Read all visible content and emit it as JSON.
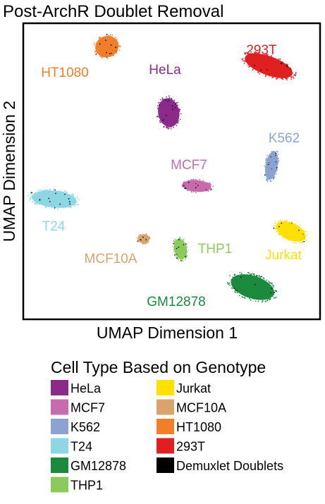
{
  "chart_data": {
    "type": "scatter",
    "title": "Post-ArchR Doublet Removal",
    "xlabel": "UMAP Dimension 1",
    "ylabel": "UMAP Dimension 2",
    "xlim": [
      0,
      100
    ],
    "ylim": [
      0,
      100
    ],
    "grid": false,
    "ticks": false,
    "legend": {
      "title": "Cell Type Based on Genotype",
      "placement": "bottom",
      "columns": 2
    },
    "series": [
      {
        "name": "HeLa",
        "color": "#8B2A8B",
        "label": "HeLa",
        "clusters": [
          {
            "x": 49,
            "y": 70,
            "rx": 4,
            "ry": 5.5,
            "angle": 10,
            "n": 200
          }
        ]
      },
      {
        "name": "MCF7",
        "color": "#C76AAE",
        "label": "MCF7",
        "clusters": [
          {
            "x": 58.5,
            "y": 45,
            "rx": 5.5,
            "ry": 2.2,
            "angle": -5,
            "n": 120
          }
        ]
      },
      {
        "name": "K562",
        "color": "#8BA3D1",
        "label": "K562",
        "clusters": [
          {
            "x": 84,
            "y": 52,
            "rx": 2.3,
            "ry": 5.5,
            "angle": -10,
            "n": 130
          }
        ]
      },
      {
        "name": "T24",
        "color": "#8DD6E3",
        "label": "T24",
        "clusters": [
          {
            "x": 10,
            "y": 40.5,
            "rx": 8.5,
            "ry": 3.2,
            "angle": -6,
            "n": 210
          }
        ]
      },
      {
        "name": "GM12878",
        "color": "#1B8A3F",
        "label": "GM12878",
        "clusters": [
          {
            "x": 77.5,
            "y": 10.5,
            "rx": 8.5,
            "ry": 4.3,
            "angle": -18,
            "n": 220
          }
        ]
      },
      {
        "name": "THP1",
        "color": "#8BCB5E",
        "label": "THP1",
        "clusters": [
          {
            "x": 53,
            "y": 23.5,
            "rx": 2.4,
            "ry": 4,
            "angle": 12,
            "n": 110
          }
        ]
      },
      {
        "name": "Jurkat",
        "color": "#FFE000",
        "label": "Jurkat",
        "clusters": [
          {
            "x": 90.5,
            "y": 29.5,
            "rx": 6,
            "ry": 3.2,
            "angle": -25,
            "n": 160
          }
        ]
      },
      {
        "name": "MCF10A",
        "color": "#D9A46C",
        "label": "MCF10A",
        "clusters": [
          {
            "x": 40.5,
            "y": 27,
            "rx": 2.2,
            "ry": 1.7,
            "angle": 0,
            "n": 70
          }
        ]
      },
      {
        "name": "HT1080",
        "color": "#F07E2A",
        "label": "HT1080",
        "clusters": [
          {
            "x": 28,
            "y": 92.5,
            "rx": 4.5,
            "ry": 4,
            "angle": 20,
            "n": 170
          }
        ]
      },
      {
        "name": "293T",
        "color": "#E02020",
        "label": "293T",
        "clusters": [
          {
            "x": 83,
            "y": 86,
            "rx": 9.5,
            "ry": 3.6,
            "angle": -20,
            "n": 230
          }
        ]
      },
      {
        "name": "Demuxlet Doublets",
        "color": "#000000",
        "label": "",
        "clusters": []
      }
    ]
  }
}
